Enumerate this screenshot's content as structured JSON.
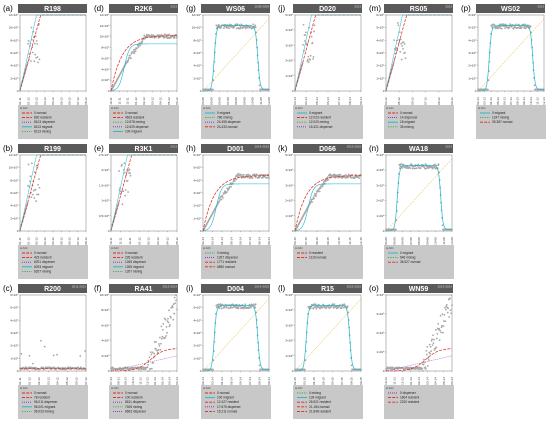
{
  "chart_data": [
    {
      "label": "(a)",
      "title": "R198",
      "tag": "",
      "type": "line",
      "scatter": "spike_early",
      "yticks": [
        "0",
        "2×10⁶",
        "4×10⁶",
        "6×10⁶",
        "8×10⁶",
        "10×10⁶",
        "12×10⁶"
      ],
      "xticks": [
        "01-11",
        "01-12",
        "02-12",
        "03-12",
        "04-12",
        "05-12",
        "06-12",
        "07-12",
        "08-12"
      ],
      "legend": [
        {
          "text": "0 nomad"
        },
        {
          "text": "820 resident"
        },
        {
          "text": "8103 disperser"
        },
        {
          "text": "8113 migrant"
        },
        {
          "text": "8113 mixing"
        }
      ]
    },
    {
      "label": "(b)",
      "title": "R199",
      "tag": "",
      "type": "line",
      "scatter": "spike_early",
      "yticks": [
        "0",
        "2×10⁶",
        "4×10⁶",
        "6×10⁶",
        "8×10⁶",
        "10×10⁶",
        "12×10⁶"
      ],
      "xticks": [
        "01-11",
        "01-12",
        "02-12",
        "03-12",
        "04-12",
        "05-12",
        "06-12",
        "07-12",
        "08-12"
      ],
      "legend": [
        {
          "text": "0 nomad"
        },
        {
          "text": "423 resident"
        },
        {
          "text": "6291 disperser"
        },
        {
          "text": "6293 migrant"
        },
        {
          "text": "6267 mixing"
        }
      ]
    },
    {
      "label": "(c)",
      "title": "R200",
      "tag": "2011-2012",
      "type": "line",
      "scatter": "flat_noise",
      "yticks": [
        "0",
        "1×10⁶",
        "2×10⁶",
        "3×10⁶",
        "4×10⁶",
        "5×10⁶",
        "6×10⁶"
      ],
      "xticks": [
        "01-11",
        "01-12",
        "02-12",
        "03-12",
        "04-12",
        "05-12",
        "06-12",
        "07-12"
      ],
      "legend": [
        {
          "text": "0 nomad"
        },
        {
          "text": "78 resident"
        },
        {
          "text": "96.011 disperser"
        },
        {
          "text": "96.001 migrant"
        },
        {
          "text": "96.033 mixing"
        }
      ]
    },
    {
      "label": "(d)",
      "title": "R2K6",
      "tag": "2013",
      "type": "line",
      "scatter": "step_plateau",
      "yticks": [
        "0",
        "2×10⁶",
        "4×10⁶",
        "6×10⁶",
        "8×10⁶",
        "10×10⁶",
        "12×10⁶",
        "14×10⁶"
      ],
      "xticks": [
        "10-11",
        "11-11",
        "12-11",
        "01-12",
        "02-12",
        "03-12",
        "04-12",
        "05-12",
        "06-12"
      ],
      "legend": [
        {
          "text": "0 nomad"
        },
        {
          "text": "4633 resident"
        },
        {
          "text": "12.678 mixing"
        },
        {
          "text": "12.629 disperser"
        },
        {
          "text": "109 migrant"
        }
      ]
    },
    {
      "label": "(e)",
      "title": "R3K1",
      "tag": "2013",
      "type": "line",
      "scatter": "spike_early",
      "yticks": [
        "0",
        "0.5×10⁶",
        "1×10⁶",
        "1.5×10⁶",
        "2×10⁶",
        "2.5×10⁶"
      ],
      "xticks": [
        "10-11",
        "11-11",
        "12-11",
        "01-12",
        "02-12",
        "03-12",
        "04-12",
        "05-12"
      ],
      "legend": [
        {
          "text": "0 nomad"
        },
        {
          "text": "226 resident"
        },
        {
          "text": "1265 disperser"
        },
        {
          "text": "1265 migrant"
        },
        {
          "text": "1267 mixing"
        }
      ]
    },
    {
      "label": "(f)",
      "title": "RA41",
      "tag": "2013-2014",
      "type": "line",
      "scatter": "late_spike",
      "yticks": [
        "0",
        "2×10⁶",
        "4×10⁶",
        "6×10⁶",
        "8×10⁶",
        "10×10⁶"
      ],
      "xticks": [
        "07-13",
        "08-13",
        "09-13",
        "10-13",
        "11-13",
        "12-13",
        "01-14",
        "02-14",
        "03-14",
        "04-14"
      ],
      "legend": [
        {
          "text": "0 nomad"
        },
        {
          "text": "100 resident"
        },
        {
          "text": "8611 disperser"
        },
        {
          "text": "7406 mixing"
        },
        {
          "text": "8663 disperser"
        }
      ]
    },
    {
      "label": "(g)",
      "title": "WS06",
      "tag": "2008-2009",
      "type": "line",
      "scatter": "plateau",
      "yticks": [
        "0",
        "2×10⁶",
        "4×10⁶",
        "6×10⁶",
        "8×10⁶",
        "10×10⁶",
        "12×10⁶"
      ],
      "xticks": [
        "04-08",
        "05-08",
        "06-08",
        "07-08",
        "08-08",
        "09-08",
        "10-08",
        "11-08",
        "12-08"
      ],
      "legend": [
        {
          "text": "0 migrant"
        },
        {
          "text": "786 mixing"
        },
        {
          "text": "24.495 disperser"
        },
        {
          "text": "24.433 nomad"
        }
      ]
    },
    {
      "label": "(h)",
      "title": "D001",
      "tag": "2014-2015",
      "type": "line",
      "scatter": "step_plateau",
      "yticks": [
        "0",
        "1×10⁶",
        "2×10⁶",
        "3×10⁶",
        "4×10⁶",
        "5×10⁶",
        "6×10⁶"
      ],
      "xticks": [
        "02-14",
        "03-14",
        "04-14",
        "05-14",
        "06-14",
        "07-14",
        "08-14",
        "09-14"
      ],
      "legend": [
        {
          "text": "0 mixing"
        },
        {
          "text": "1267 disperser"
        },
        {
          "text": "1771 resident"
        },
        {
          "text": "6890 nomad"
        }
      ]
    },
    {
      "label": "(i)",
      "title": "D004",
      "tag": "2014-2015",
      "type": "line",
      "scatter": "plateau",
      "yticks": [
        "0",
        "1×10⁶",
        "2×10⁶",
        "3×10⁶",
        "4×10⁶",
        "5×10⁶",
        "6×10⁶"
      ],
      "xticks": [
        "02-14",
        "03-14",
        "04-14",
        "05-14",
        "06-14",
        "07-14",
        "08-14",
        "09-14"
      ],
      "legend": [
        {
          "text": "0 nomad"
        },
        {
          "text": "100 migrant"
        },
        {
          "text": "12.427 resident"
        },
        {
          "text": "17.675 disperser"
        },
        {
          "text": "15.211 nomad"
        }
      ]
    },
    {
      "label": "(j)",
      "title": "D020",
      "tag": "2013",
      "type": "line",
      "scatter": "spike_early",
      "yticks": [
        "0",
        "1×10⁶",
        "2×10⁶",
        "3×10⁶",
        "4×10⁶",
        "5×10⁶"
      ],
      "xticks": [
        "03-14",
        "04-14",
        "05-14",
        "06-14",
        "07-14",
        "08-14",
        "09-14"
      ],
      "legend": [
        {
          "text": "0 migrant"
        },
        {
          "text": "12.023 resident"
        },
        {
          "text": "12.020 mixing"
        },
        {
          "text": "15.321 disperser"
        }
      ]
    },
    {
      "label": "(k)",
      "title": "D066",
      "tag": "2015-2016",
      "type": "line",
      "scatter": "step_plateau",
      "yticks": [
        "0",
        "1×10⁶",
        "2×10⁶",
        "3×10⁶",
        "4×10⁶",
        "5×10⁶"
      ],
      "xticks": [
        "06-15",
        "07-15",
        "08-15",
        "09-15",
        "10-15",
        "11-15",
        "12-15"
      ],
      "legend": [
        {
          "text": "0 resident"
        },
        {
          "text": "1116 nomad"
        }
      ]
    },
    {
      "label": "(l)",
      "title": "R15",
      "tag": "2015-2016",
      "type": "line",
      "scatter": "plateau",
      "yticks": [
        "0",
        "1×10⁶",
        "2×10⁶",
        "3×10⁶",
        "4×10⁶",
        "5×10⁶"
      ],
      "xticks": [
        "02-15",
        "03-15",
        "04-15",
        "05-15",
        "06-15",
        "07-15",
        "08-15",
        "09-15"
      ],
      "legend": [
        {
          "text": "0 mixing"
        },
        {
          "text": "139 migrant"
        },
        {
          "text": "26.921 resident"
        },
        {
          "text": "21.184 nomad"
        },
        {
          "text": "21.848 resident"
        }
      ]
    },
    {
      "label": "(m)",
      "title": "RS05",
      "tag": "2013",
      "type": "line",
      "scatter": "spike_early",
      "yticks": [
        "0",
        "1×10⁶",
        "2×10⁶",
        "3×10⁶",
        "4×10⁶",
        "5×10⁶",
        "6×10⁶"
      ],
      "xticks": [
        "04-12",
        "05-12",
        "06-12",
        "07-12",
        "08-12",
        "09-12"
      ],
      "legend": [
        {
          "text": "0 nomad"
        },
        {
          "text": "14 disperser"
        },
        {
          "text": "18 migrant"
        },
        {
          "text": "35 mixing"
        }
      ]
    },
    {
      "label": "(n)",
      "title": "WA18",
      "tag": "2013",
      "type": "line",
      "scatter": "plateau",
      "yticks": [
        "0",
        "1×10⁶",
        "2×10⁶",
        "3×10⁶",
        "4×10⁶",
        "5×10⁶"
      ],
      "xticks": [
        "04-08",
        "05-08",
        "06-08",
        "07-08",
        "08-08",
        "09-08",
        "10-08",
        "11-08",
        "12-08"
      ],
      "legend": [
        {
          "text": "0 migrant"
        },
        {
          "text": "646 mixing"
        },
        {
          "text": "36.527 nomad"
        }
      ]
    },
    {
      "label": "(o)",
      "title": "WN59",
      "tag": "2013-2014",
      "type": "line",
      "scatter": "late_spike",
      "yticks": [
        "0",
        "1×10⁶",
        "2×10⁶",
        "3×10⁶",
        "4×10⁶"
      ],
      "xticks": [
        "10-13",
        "11-13",
        "12-13",
        "01-14",
        "02-14",
        "03-14",
        "04-14",
        "05-14",
        "06-14"
      ],
      "legend": [
        {
          "text": "0 disperser"
        },
        {
          "text": "1804 resident"
        },
        {
          "text": "2220 resident"
        }
      ]
    },
    {
      "label": "(p)",
      "title": "WS02",
      "tag": "2013",
      "type": "line",
      "scatter": "plateau",
      "yticks": [
        "0",
        "1×10⁶",
        "2×10⁶",
        "3×10⁶",
        "4×10⁶",
        "5×10⁶",
        "6×10⁶"
      ],
      "xticks": [
        "02-13",
        "03-13",
        "04-13",
        "05-13",
        "06-13",
        "07-13",
        "08-13",
        "09-13",
        "10-13",
        "11-13",
        "12-13"
      ],
      "legend": [
        {
          "text": "0 migrant"
        },
        {
          "text": "1247 mixing"
        },
        {
          "text": "39.387 nomad"
        }
      ]
    }
  ],
  "colors": {
    "title_bg": "#5a5a5a",
    "legend_bg": "#c8c8c8",
    "points": "#a8a8a8",
    "cyan": "#1ab7c9",
    "red": "#e0241b",
    "orange": "#f0a012",
    "purple": "#7b2fb5",
    "green": "#2eaa4a"
  },
  "legend_header": "Δ AIC"
}
